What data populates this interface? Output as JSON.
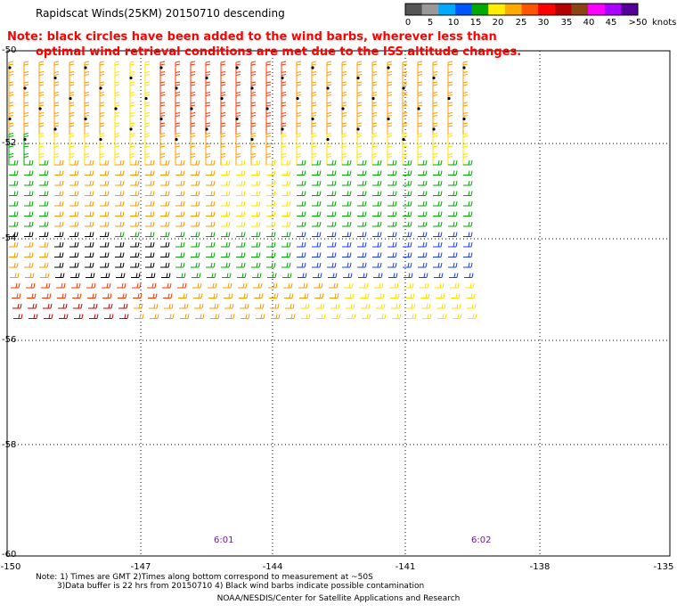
{
  "title": "Rapidscat Winds(25KM) 20150710 descending",
  "note": {
    "line1": "Note: black circles have been added to the wind barbs, wherever less than",
    "line2": "optimal wind retrieval conditions are met due to the ISS altitude changes."
  },
  "legend": {
    "labels": [
      "0",
      "5",
      "10",
      "15",
      "20",
      "25",
      "30",
      "35",
      "40",
      "45",
      ">50"
    ],
    "unit": "knots",
    "colors": [
      "#555555",
      "#999999",
      "#00aaff",
      "#0055ff",
      "#00aa00",
      "#ffee00",
      "#ffaa00",
      "#ff5500",
      "#ff0000",
      "#b40000",
      "#8b4513",
      "#ff00ff",
      "#aa00ff",
      "#550099"
    ]
  },
  "axes": {
    "lat_labels": [
      "-50",
      "-52",
      "-54",
      "-56",
      "-58",
      "-60"
    ],
    "lon_labels": [
      "-150",
      "-147",
      "-144",
      "-141",
      "-138",
      "-135"
    ]
  },
  "pass_times": [
    "6:01",
    "6:02"
  ],
  "footnote": {
    "line1": "Note: 1) Times are GMT 2)Times along bottom correspond to measurement at ~50S",
    "line2": "3)Data buffer is 22 hrs from 20150710 4) Black wind barbs indicate possible contamination"
  },
  "credit": "NOAA/NESDIS/Center for Satellite Applications and Research"
}
